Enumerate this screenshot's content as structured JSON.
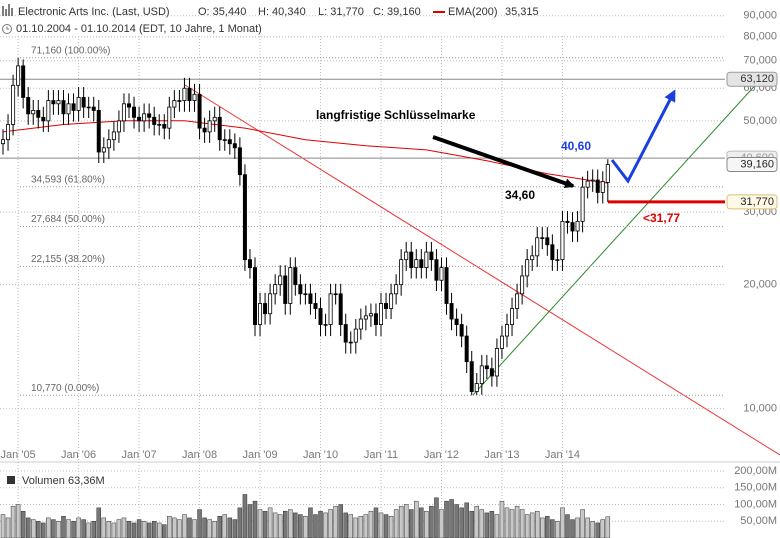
{
  "chart_data": {
    "type": "candlestick",
    "title": "Electronic Arts Inc. (Last, USD)",
    "ohlc_labels": [
      "O: 35,440",
      "H: 40,340",
      "L: 31,770",
      "C: 39,160"
    ],
    "ema_label": "EMA(200)",
    "ema_value_label": "35,315",
    "subtitle": "01.10.2004 - 01.10.2014 (EDT, 10 Jahre, 1 Monat)",
    "log_scale": true,
    "grid": true,
    "ylim": [
      7.5,
      98.3
    ],
    "yticks": [
      {
        "value": 90,
        "label": "90,000"
      },
      {
        "value": 80,
        "label": "80,000"
      },
      {
        "value": 70,
        "label": "70,000"
      },
      {
        "value": 60,
        "label": "60,000"
      },
      {
        "value": 50,
        "label": "50,000"
      },
      {
        "value": 30,
        "label": "30,000"
      },
      {
        "value": 20,
        "label": "20,000"
      },
      {
        "value": 10,
        "label": "10,000"
      }
    ],
    "categories": [
      null,
      null,
      null,
      "Jan '05",
      null,
      null,
      null,
      null,
      null,
      null,
      null,
      null,
      null,
      null,
      null,
      "Jan '06",
      null,
      null,
      null,
      null,
      null,
      null,
      null,
      null,
      null,
      null,
      null,
      "Jan '07",
      null,
      null,
      null,
      null,
      null,
      null,
      null,
      null,
      null,
      null,
      null,
      "Jan '08",
      null,
      null,
      null,
      null,
      null,
      null,
      null,
      null,
      null,
      null,
      null,
      "Jan '09",
      null,
      null,
      null,
      null,
      null,
      null,
      null,
      null,
      null,
      null,
      null,
      "Jan '10",
      null,
      null,
      null,
      null,
      null,
      null,
      null,
      null,
      null,
      null,
      null,
      "Jan '11",
      null,
      null,
      null,
      null,
      null,
      null,
      null,
      null,
      null,
      null,
      null,
      "Jan '12",
      null,
      null,
      null,
      null,
      null,
      null,
      null,
      null,
      null,
      null,
      null,
      "Jan '13",
      null,
      null,
      null,
      null,
      null,
      null,
      null,
      null,
      null,
      null,
      null,
      "Jan '14",
      null,
      null,
      null,
      null,
      null,
      null,
      null,
      null,
      null
    ],
    "open": [
      44,
      45,
      49,
      61,
      68,
      57,
      52,
      53,
      51,
      50,
      56,
      55,
      56,
      52,
      55,
      53,
      57,
      54,
      54,
      53,
      42,
      43,
      45,
      47,
      50,
      55,
      54,
      51,
      50,
      52,
      51,
      49,
      49,
      48,
      54,
      56,
      56,
      60,
      56,
      58,
      48,
      47,
      50,
      51,
      45,
      45,
      44,
      43,
      37,
      23,
      22,
      16,
      18,
      17,
      19,
      20,
      21,
      18,
      22,
      20,
      19,
      19,
      18,
      17.5,
      16,
      16,
      19,
      19,
      16,
      14.5,
      14.5,
      15.6,
      16.5,
      16.8,
      17,
      16,
      18,
      17.5,
      19,
      20,
      23,
      24,
      22,
      23,
      22,
      24,
      23,
      20.5,
      22,
      18,
      16.5,
      16,
      15,
      13,
      11,
      11.5,
      12.7,
      12.5,
      12,
      14,
      15,
      16,
      17.5,
      19,
      21,
      23,
      23.5,
      26,
      26,
      25,
      23,
      23,
      28.5,
      28.3,
      27,
      28.5,
      34.5,
      35.7,
      35.9,
      33.5,
      35.44
    ],
    "high": [
      47.7,
      51.9,
      64.7,
      71.16,
      70.5,
      60.4,
      56.2,
      56.2,
      54.1,
      59.4,
      59.4,
      59.4,
      59.4,
      58.3,
      58.3,
      60.4,
      60.4,
      57.2,
      57.2,
      56.2,
      45.6,
      47.7,
      49.8,
      53,
      58.3,
      58.3,
      57.2,
      54.1,
      55.1,
      55.1,
      54.1,
      51.9,
      51.9,
      57.2,
      59.4,
      59.4,
      63.6,
      63.6,
      61.5,
      61.5,
      50.9,
      53,
      54.1,
      54.1,
      47.7,
      47.7,
      46.6,
      45.6,
      39.2,
      24.4,
      23.3,
      19.1,
      19.1,
      20.1,
      21.2,
      22.3,
      22.3,
      23.3,
      23.3,
      21.2,
      20.1,
      20.1,
      19.1,
      18.6,
      17,
      20.1,
      20.1,
      20.1,
      17,
      15.4,
      16.5,
      17.5,
      17.8,
      18,
      18,
      19.1,
      19.1,
      20.1,
      21.2,
      24.4,
      25.4,
      25.4,
      24.4,
      24.4,
      25.4,
      25.4,
      24.4,
      23.3,
      23.3,
      19.1,
      17.5,
      17,
      15.9,
      13.8,
      12.2,
      13.5,
      13.5,
      13.3,
      14.8,
      15.9,
      17,
      18.6,
      20.1,
      22.3,
      24.4,
      24.9,
      27.6,
      27.6,
      27.6,
      26.5,
      24.4,
      30.2,
      30.2,
      30,
      30.2,
      36.6,
      37.8,
      38.1,
      38.1,
      37.7,
      40.34
    ],
    "low": [
      41.4,
      42.3,
      46.1,
      57.3,
      53.6,
      48.9,
      48.9,
      47.9,
      47,
      47,
      51.7,
      51.7,
      48.9,
      48.9,
      49.8,
      49.8,
      50.8,
      50.8,
      49.8,
      39.5,
      39.5,
      40.4,
      42.3,
      44.2,
      47,
      50.8,
      47.9,
      47,
      47,
      47.9,
      46.1,
      46.1,
      45.1,
      45.1,
      50.8,
      52.6,
      52.6,
      52.6,
      52.6,
      45.1,
      44.2,
      44.2,
      47,
      42.3,
      42.3,
      41.4,
      40.4,
      34.8,
      21.6,
      20.7,
      15,
      15,
      16,
      16,
      17.9,
      18.8,
      16.9,
      16.9,
      18.8,
      17.9,
      17.9,
      16.9,
      16.5,
      15,
      15,
      15,
      17.9,
      15,
      13.6,
      13.6,
      13.6,
      14.7,
      15.5,
      15.8,
      15,
      15,
      16.5,
      16.5,
      17.9,
      18.8,
      21.6,
      20.7,
      20.7,
      20.7,
      20.7,
      21.6,
      19.3,
      19.3,
      16.9,
      15.5,
      15,
      14.1,
      12.2,
      10.77,
      10.8,
      10.8,
      11.8,
      11.3,
      11.3,
      13.2,
      14.1,
      15,
      16.5,
      17.9,
      19.7,
      21.6,
      22.1,
      24.4,
      23.5,
      21.6,
      21.6,
      21.6,
      26.6,
      25.4,
      25.4,
      26.8,
      32.4,
      33.6,
      31.5,
      31.5,
      31.77
    ],
    "close": [
      45,
      49,
      61,
      68,
      57,
      52,
      53,
      51,
      50,
      56,
      55,
      56,
      52,
      55,
      53,
      57,
      54,
      54,
      53,
      42,
      43,
      45,
      47,
      50,
      55,
      54,
      51,
      50,
      52,
      51,
      49,
      49,
      48,
      54,
      56,
      56,
      60,
      56,
      58,
      48,
      47,
      50,
      51,
      45,
      45,
      44,
      43,
      37,
      23,
      22,
      16,
      18,
      17,
      19,
      20,
      21,
      18,
      22,
      20,
      19,
      19,
      18,
      17.5,
      16,
      16,
      19,
      19,
      16,
      14.5,
      14.5,
      15.6,
      16.5,
      16.8,
      17,
      16,
      18,
      17.5,
      19,
      20,
      23,
      24,
      22,
      23,
      22,
      24,
      23,
      20.5,
      22,
      18,
      16.5,
      16,
      15,
      13,
      11,
      11.5,
      12.7,
      12.5,
      12,
      14,
      15,
      16,
      17.5,
      19,
      21,
      23,
      23.5,
      26,
      26,
      25,
      23,
      23,
      28.5,
      28.3,
      27,
      28.5,
      34.5,
      35.7,
      35.9,
      33.5,
      35.6,
      39.16
    ],
    "ema": {
      "color": "#e00000",
      "x": [
        0,
        12,
        24,
        36,
        48,
        60,
        72,
        84,
        96,
        108,
        120
      ],
      "values": [
        47,
        49,
        50,
        50,
        48,
        45,
        43.5,
        42.5,
        40,
        37.2,
        35.3
      ]
    },
    "fib_levels": [
      {
        "value": 71.16,
        "label": "71,160 (100.00%)"
      },
      {
        "value": 34.593,
        "label": "34,593 (61.80%)"
      },
      {
        "value": 27.684,
        "label": "27,684 (50.00%)"
      },
      {
        "value": 22.155,
        "label": "22,155 (38.20%)"
      },
      {
        "value": 10.77,
        "label": "10,770 (0.00%)"
      }
    ],
    "levels": [
      63.12,
      40.6
    ],
    "price_labels": [
      {
        "value": 63.12,
        "label": "63,120"
      },
      {
        "value": 40.6,
        "label": "40,600"
      },
      {
        "value": 39.16,
        "label": "39,160"
      },
      {
        "value": 31.77,
        "label": "31,770"
      }
    ],
    "support": {
      "value": 31.77,
      "label": "<31,77",
      "color": "#dd0000"
    },
    "annotations": [
      "langfristige Schlüsselmarke",
      "40,60",
      "34,60"
    ],
    "volume": {
      "name": "Volumen",
      "last_label": "63,36M",
      "vlim": [
        0,
        218
      ],
      "ticks": [
        {
          "value": 200,
          "label": "200,00M"
        },
        {
          "value": 150,
          "label": "150,00M"
        },
        {
          "value": 100,
          "label": "100,00M"
        },
        {
          "value": 50,
          "label": "50,00M"
        }
      ],
      "values": [
        70,
        60,
        95,
        100,
        80,
        60,
        55,
        50,
        45,
        60,
        55,
        50,
        65,
        55,
        50,
        60,
        55,
        45,
        50,
        90,
        60,
        50,
        45,
        55,
        60,
        50,
        45,
        55,
        50,
        45,
        50,
        45,
        40,
        65,
        60,
        55,
        70,
        60,
        55,
        85,
        60,
        55,
        50,
        65,
        70,
        60,
        55,
        90,
        130,
        100,
        110,
        85,
        80,
        90,
        75,
        70,
        80,
        85,
        75,
        70,
        65,
        90,
        70,
        80,
        75,
        85,
        95,
        100,
        75,
        70,
        60,
        65,
        70,
        80,
        90,
        75,
        70,
        65,
        85,
        95,
        100,
        85,
        110,
        90,
        80,
        95,
        120,
        85,
        110,
        115,
        100,
        90,
        105,
        80,
        95,
        85,
        75,
        80,
        70,
        110,
        90,
        85,
        95,
        85,
        70,
        75,
        80,
        60,
        65,
        55,
        50,
        90,
        70,
        55,
        60,
        85,
        60,
        50,
        45,
        55,
        63.36
      ]
    }
  }
}
